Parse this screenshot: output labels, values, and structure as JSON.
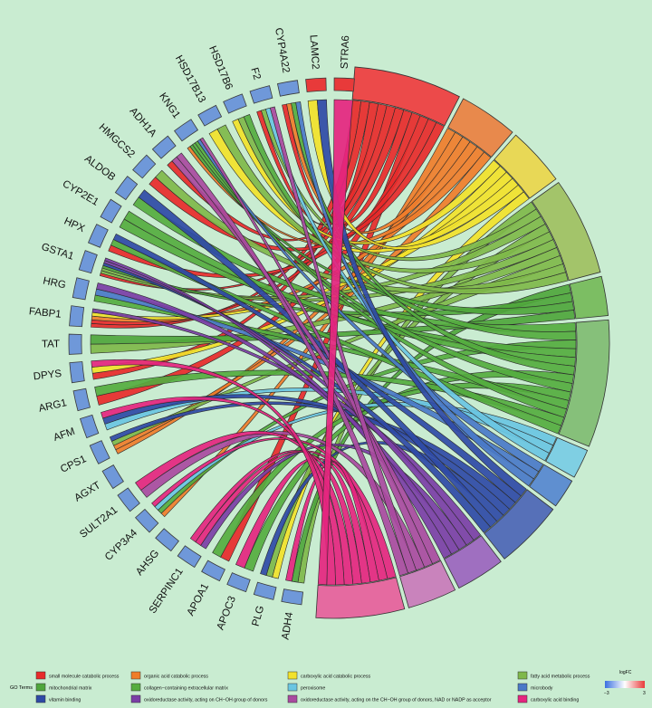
{
  "chart_data": {
    "type": "chord",
    "title": "",
    "genes": [
      "STRA6",
      "LAMC2",
      "CYP4A22",
      "F2",
      "HSD17B6",
      "HSD17B13",
      "KNG1",
      "ADH1A",
      "HMGCS2",
      "ALDOB",
      "CYP2E1",
      "HPX",
      "GSTA1",
      "HRG",
      "FABP1",
      "TAT",
      "DPYS",
      "ARG1",
      "AFM",
      "CPS1",
      "AGXT",
      "SULT2A1",
      "CYP3A4",
      "AHSG",
      "SERPINC1",
      "APOA1",
      "APOC3",
      "PLG",
      "ADH4"
    ],
    "gene_logFC": [
      1.6,
      1.6,
      -1.6,
      -1.6,
      -1.6,
      -1.6,
      -1.6,
      -1.6,
      -1.6,
      -1.6,
      -1.6,
      -1.6,
      -1.6,
      -1.6,
      -1.6,
      -1.6,
      -1.6,
      -1.6,
      -1.6,
      -1.6,
      -1.6,
      -1.6,
      -1.6,
      -1.6,
      -1.6,
      -1.6,
      -1.6,
      -1.6,
      -1.6
    ],
    "terms": [
      {
        "name": "small molecule catabolic process",
        "color": "#ec4a4a",
        "genes": 11
      },
      {
        "name": "organic acid catabolic process",
        "color": "#e8894c",
        "genes": 6
      },
      {
        "name": "carboxylic acid catabolic process",
        "color": "#e8d856",
        "genes": 6
      },
      {
        "name": "fatty acid metabolic process",
        "color": "#a3c46a",
        "genes": 10
      },
      {
        "name": "mitochondrial matrix",
        "color": "#7cbe63",
        "genes": 4
      },
      {
        "name": "collagen-containing extracellular matrix",
        "color": "#86c07a",
        "genes": 13
      },
      {
        "name": "peroxisome",
        "color": "#7fcfe3",
        "genes": 3
      },
      {
        "name": "microbody",
        "color": "#5f8fd0",
        "genes": 3
      },
      {
        "name": "vitamin binding",
        "color": "#5670b8",
        "genes": 7
      },
      {
        "name": "oxidoreductase activity, acting on CH-OH group of donors",
        "color": "#9f6fc0",
        "genes": 5
      },
      {
        "name": "oxidoreductase activity, acting on the CH-OH group of donors, NAD or NADP as acceptor",
        "color": "#c983bc",
        "genes": 5
      },
      {
        "name": "carboxylic acid binding",
        "color": "#e56aa0",
        "genes": 9
      }
    ],
    "legend": {
      "title": "GO Terms",
      "placement": "bottom",
      "rows": [
        [
          "small molecule catabolic process",
          "organic acid catabolic process",
          "carboxylic acid catabolic process",
          "fatty acid metabolic process"
        ],
        [
          "mitochondrial matrix",
          "collagen−containing extracellular matrix",
          "peroxisome",
          "microbody"
        ],
        [
          "vitamin binding",
          "oxidoreductase activity, acting on CH−OH group of donors",
          "oxidoreductase activity, acting on the CH−OH group of donors, NAD or NADP as acceptor",
          "carboxylic acid binding"
        ]
      ],
      "row_colors": [
        [
          "#e82a2a",
          "#f07d2a",
          "#f2e22a",
          "#7fb84a"
        ],
        [
          "#4fa63c",
          "#55ad3f",
          "#6ac6e2",
          "#4a79c8"
        ],
        [
          "#2f4aa6",
          "#7b3ea6",
          "#a94aa0",
          "#e5257f"
        ]
      ],
      "scale": {
        "title": "logFC",
        "min": "−3",
        "max": "3",
        "low_color": "#3a6fe0",
        "high_color": "#e83a3a"
      }
    },
    "gene_box_color_down": "#6f98d9",
    "gene_box_color_up": "#e83a3a"
  }
}
